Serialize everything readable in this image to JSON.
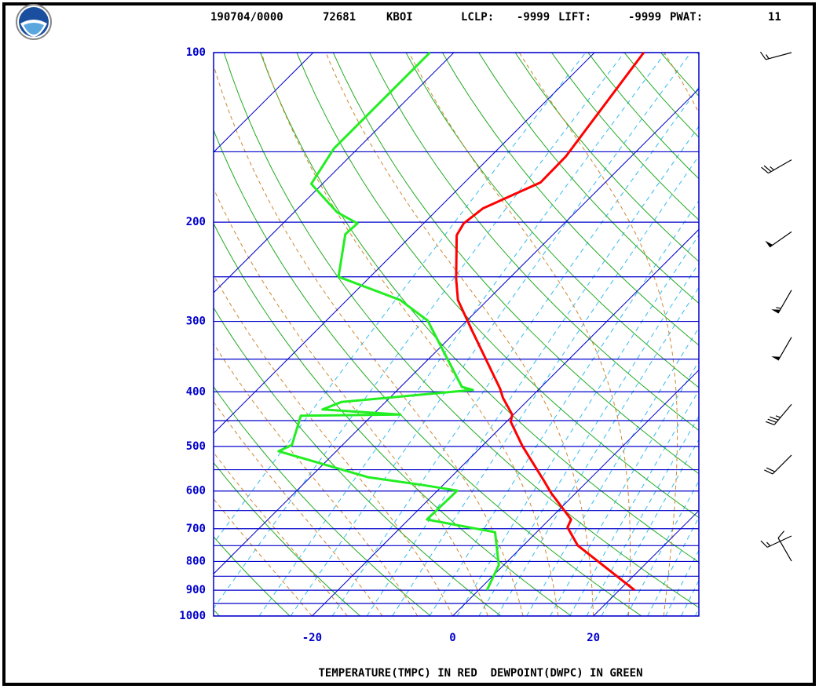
{
  "chart_data": {
    "type": "skewt",
    "header": {
      "date_time": "190704/0000",
      "station_number": "72681",
      "station": "KBOI",
      "indices": [
        {
          "label": "LCLP:",
          "value": -9999
        },
        {
          "label": "LIFT:",
          "value": -9999
        },
        {
          "label": "PWAT:",
          "value": 11
        }
      ]
    },
    "xlabel": "TEMPERATURE(TMPC) IN RED  DEWPOINT(DWPC) IN GREEN",
    "xlim": [
      -34,
      35
    ],
    "xticks": [
      -20,
      0,
      20
    ],
    "ylim": [
      1000,
      100
    ],
    "yticks": [
      100,
      200,
      300,
      400,
      500,
      600,
      700,
      800,
      900,
      1000
    ],
    "log_y": true,
    "grid": true,
    "series": [
      {
        "name": "TEMPERATURE(TMPC)",
        "color": "#ff0000",
        "pressure": [
          900,
          749,
          696,
          674,
          605,
          574,
          499,
          452,
          439,
          410,
          395,
          310,
          275,
          252,
          211,
          201,
          189,
          170,
          153,
          100
        ],
        "values": [
          22.2,
          7.7,
          3.7,
          3.1,
          -3.5,
          -6.4,
          -14.3,
          -19.4,
          -20.2,
          -23.9,
          -25.6,
          -38.1,
          -44.2,
          -47.5,
          -53.6,
          -54.3,
          -53.7,
          -49.2,
          -49.3,
          -53.0
        ]
      },
      {
        "name": "DEWPOINT(DWPC)",
        "color": "#22ee22",
        "pressure": [
          900,
          812,
          710,
          674,
          599,
          585,
          567,
          510,
          497,
          441,
          439,
          430,
          417,
          397,
          392,
          299,
          275,
          250,
          210,
          201,
          192,
          171,
          148,
          100
        ],
        "values": [
          1.2,
          -0.7,
          -5.9,
          -17.4,
          -17.2,
          -23.1,
          -31.8,
          -48.2,
          -47.2,
          -50.1,
          -36.1,
          -47.9,
          -46.3,
          -29.3,
          -31.3,
          -45.6,
          -52.4,
          -64.5,
          -69.6,
          -69.4,
          -73.9,
          -81.6,
          -83.4,
          -83.4
        ]
      }
    ],
    "wind": {
      "pressure": [
        100,
        155,
        208,
        264,
        320,
        421,
        518,
        721,
        799
      ],
      "direction": [
        255,
        240,
        235,
        210,
        210,
        220,
        225,
        245,
        330
      ],
      "speed": [
        15,
        25,
        50,
        55,
        50,
        35,
        20,
        15,
        10
      ]
    }
  }
}
